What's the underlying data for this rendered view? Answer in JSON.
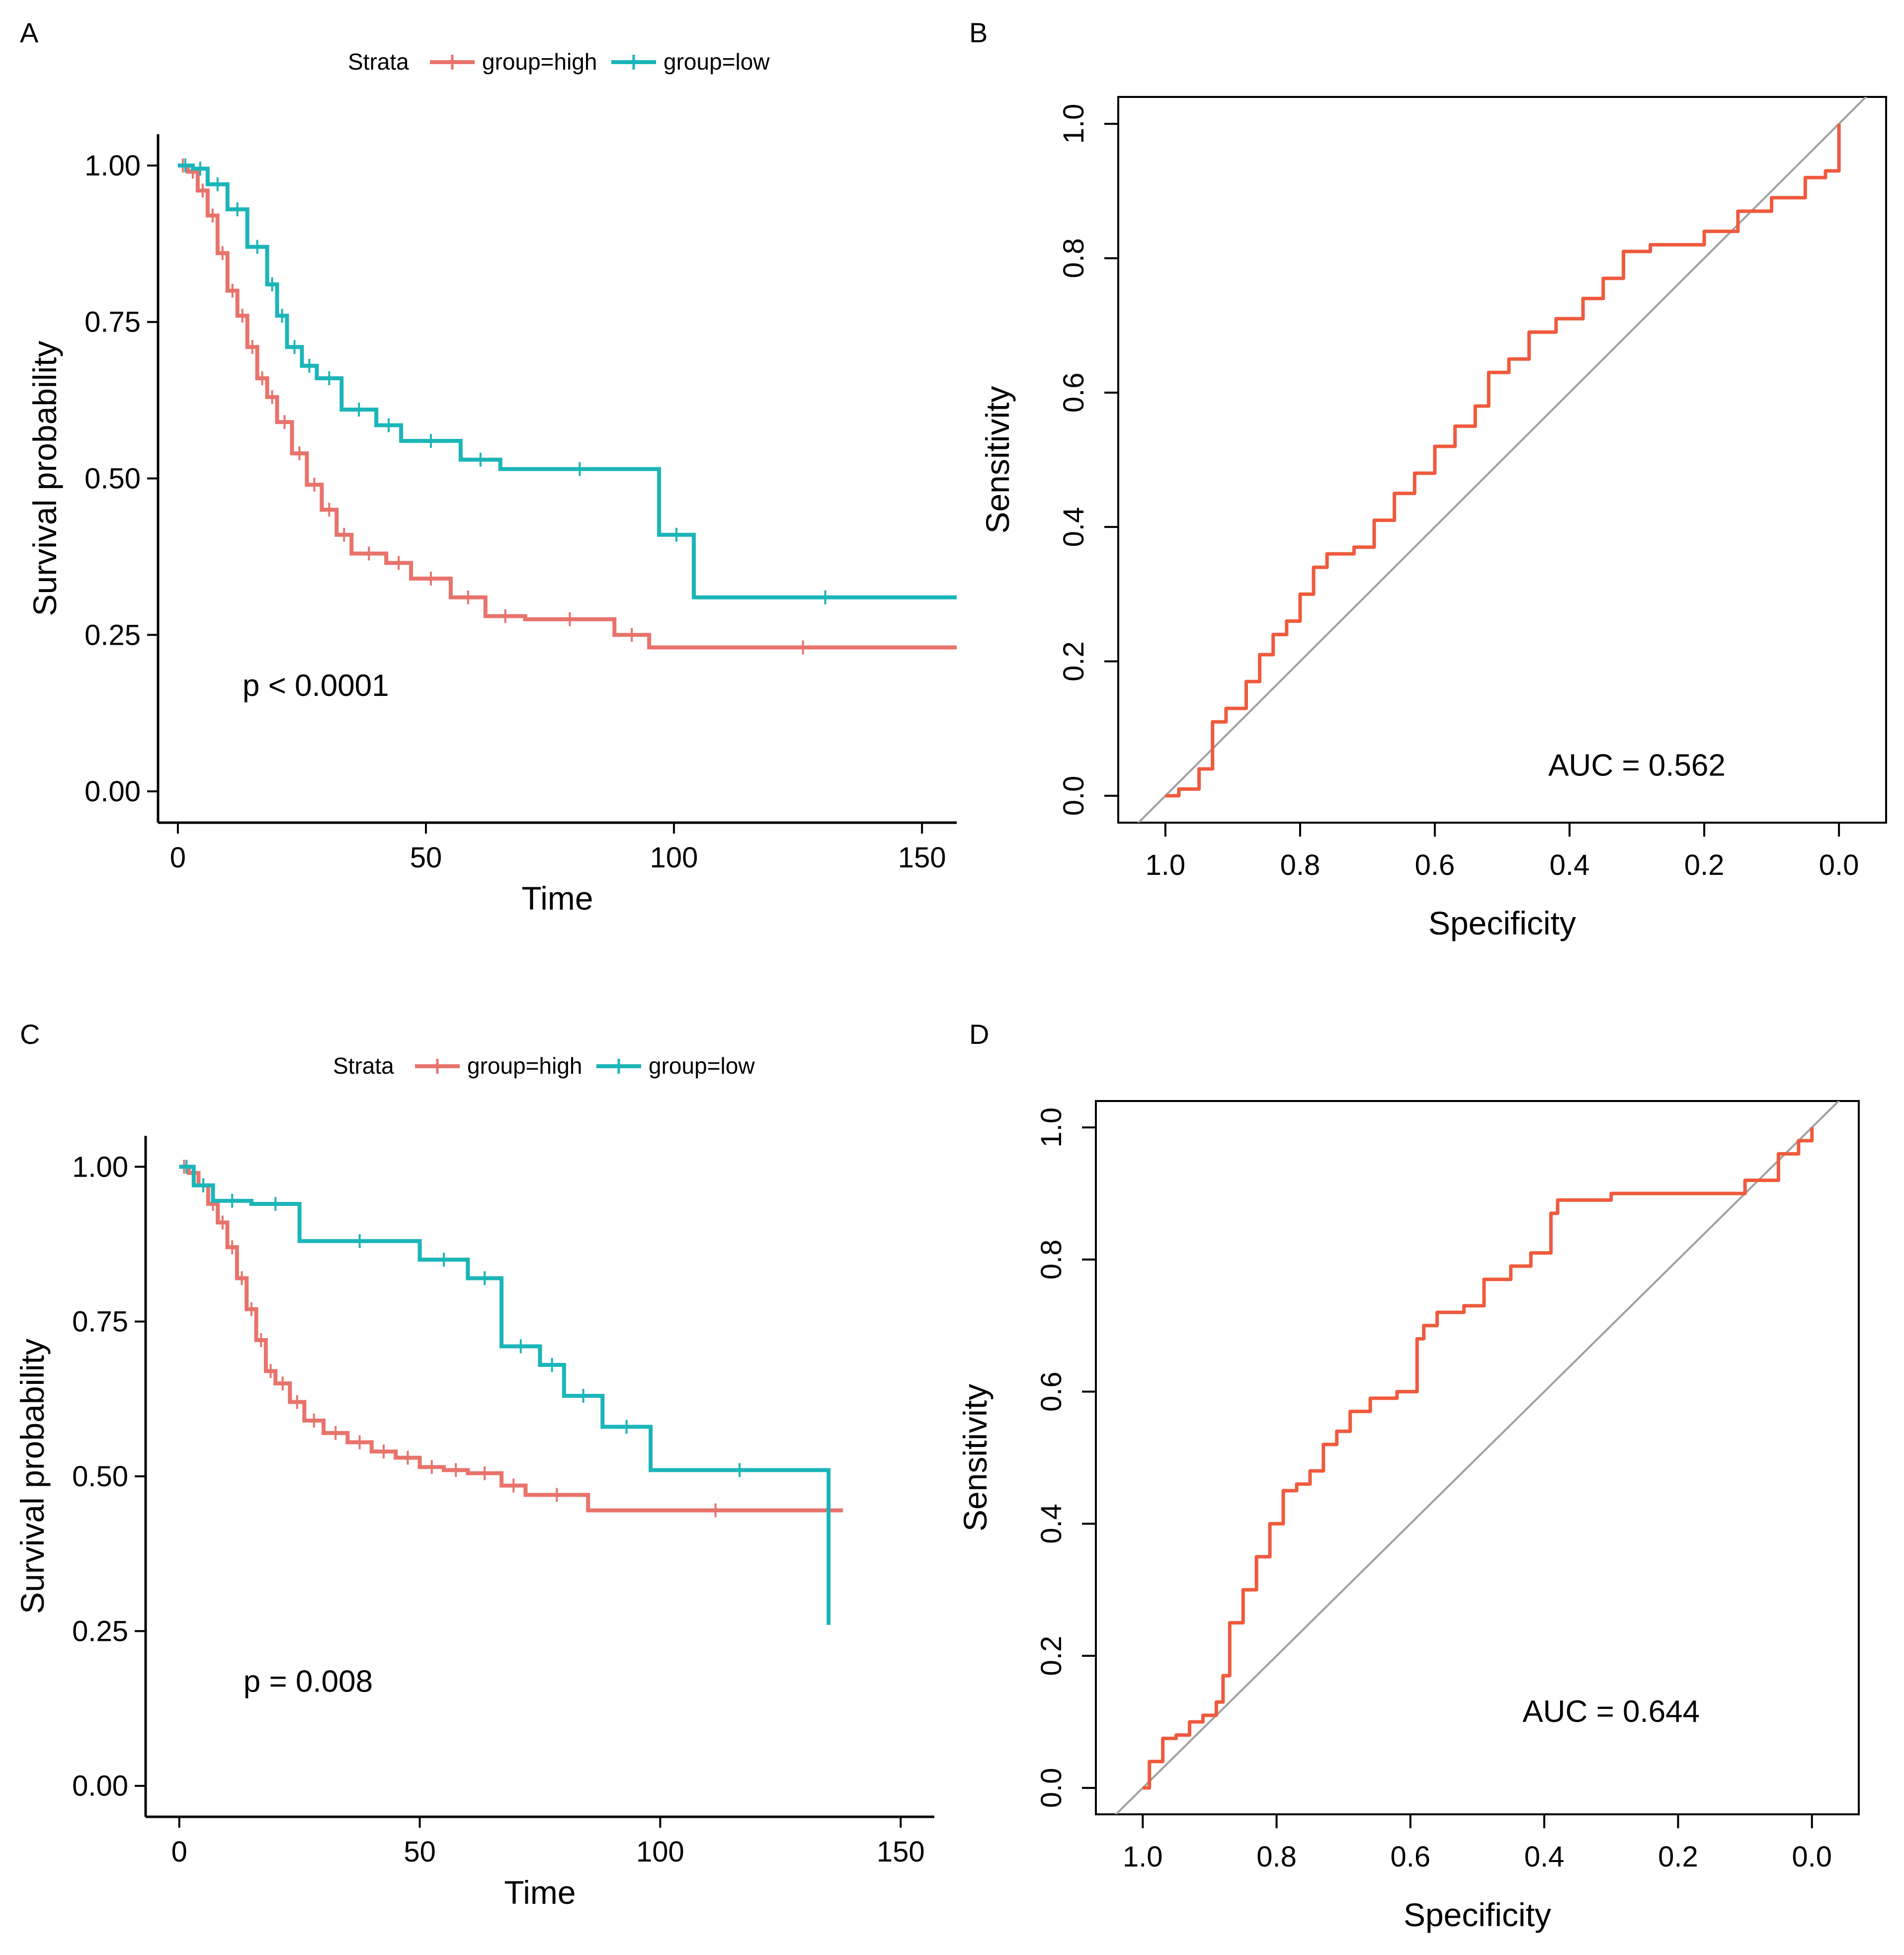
{
  "colors": {
    "high": "#e8736c",
    "low": "#1bb5b8",
    "roc": "#ef5a3c",
    "diag": "#a0a0a0",
    "axis": "#000000"
  },
  "chart_data": [
    {
      "panel": "A",
      "type": "line",
      "subtype": "kaplan-meier",
      "legend": {
        "title": "Strata",
        "entries": [
          "group=high",
          "group=low"
        ],
        "placement": "top"
      },
      "xlabel": "Time",
      "ylabel": "Survival probability",
      "xlim": [
        -4,
        157
      ],
      "ylim": [
        -0.05,
        1.05
      ],
      "xticks": [
        0,
        50,
        100,
        150
      ],
      "yticks": [
        "0.00",
        "0.25",
        "0.50",
        "0.75",
        "1.00"
      ],
      "annotation": {
        "text": "p < 0.0001",
        "x": 3,
        "y": 0.2
      },
      "series": [
        {
          "name": "group=high",
          "color": "#e8736c",
          "x": [
            0,
            2,
            4,
            6,
            8,
            10,
            12,
            14,
            16,
            18,
            20,
            23,
            26,
            29,
            32,
            35,
            42,
            47,
            55,
            62,
            70,
            88,
            95,
            157
          ],
          "y": [
            1.0,
            0.99,
            0.96,
            0.92,
            0.86,
            0.8,
            0.76,
            0.71,
            0.66,
            0.63,
            0.59,
            0.54,
            0.49,
            0.45,
            0.41,
            0.38,
            0.365,
            0.34,
            0.31,
            0.28,
            0.275,
            0.25,
            0.23,
            0.23
          ]
        },
        {
          "name": "group=low",
          "color": "#1bb5b8",
          "x": [
            0,
            3,
            6,
            10,
            14,
            18,
            20,
            22,
            25,
            28,
            33,
            40,
            45,
            57,
            65,
            97,
            104,
            157
          ],
          "y": [
            1.0,
            0.995,
            0.97,
            0.93,
            0.87,
            0.81,
            0.76,
            0.71,
            0.68,
            0.66,
            0.61,
            0.585,
            0.56,
            0.53,
            0.515,
            0.41,
            0.31,
            0.31
          ]
        }
      ]
    },
    {
      "panel": "B",
      "type": "line",
      "subtype": "roc",
      "xlabel": "Specificity",
      "ylabel": "Sensitivity",
      "xlim": [
        1.07,
        -0.07
      ],
      "ylim": [
        -0.04,
        1.04
      ],
      "xticks": [
        "1.0",
        "0.8",
        "0.6",
        "0.4",
        "0.2",
        "0.0"
      ],
      "yticks": [
        "0.0",
        "0.2",
        "0.4",
        "0.6",
        "0.8",
        "1.0"
      ],
      "annotation": {
        "text": "AUC = 0.562",
        "x": 0.3,
        "y": 0.03
      },
      "series": [
        {
          "name": "ROC",
          "color": "#ef5a3c",
          "x": [
            1.0,
            0.98,
            0.95,
            0.93,
            0.91,
            0.88,
            0.86,
            0.84,
            0.82,
            0.8,
            0.78,
            0.76,
            0.72,
            0.69,
            0.66,
            0.63,
            0.6,
            0.57,
            0.54,
            0.52,
            0.49,
            0.46,
            0.42,
            0.38,
            0.35,
            0.32,
            0.28,
            0.2,
            0.15,
            0.1,
            0.05,
            0.02,
            0.0,
            0.0
          ],
          "y": [
            0.0,
            0.01,
            0.04,
            0.11,
            0.13,
            0.17,
            0.21,
            0.24,
            0.26,
            0.3,
            0.34,
            0.36,
            0.37,
            0.41,
            0.45,
            0.48,
            0.52,
            0.55,
            0.58,
            0.63,
            0.65,
            0.69,
            0.71,
            0.74,
            0.77,
            0.81,
            0.82,
            0.84,
            0.87,
            0.89,
            0.92,
            0.93,
            0.96,
            1.0
          ]
        },
        {
          "name": "reference",
          "color": "#a0a0a0",
          "x": [
            1.07,
            -0.07
          ],
          "y": [
            -0.07,
            1.07
          ]
        }
      ]
    },
    {
      "panel": "C",
      "type": "line",
      "subtype": "kaplan-meier",
      "legend": {
        "title": "Strata",
        "entries": [
          "group=high",
          "group=low"
        ],
        "placement": "top"
      },
      "xlabel": "Time",
      "ylabel": "Survival probability",
      "xlim": [
        -7,
        157
      ],
      "ylim": [
        -0.05,
        1.05
      ],
      "xticks": [
        0,
        50,
        100,
        150
      ],
      "yticks": [
        "0.00",
        "0.25",
        "0.50",
        "0.75",
        "1.00"
      ],
      "annotation": {
        "text": "p = 0.008",
        "x": 3,
        "y": 0.2
      },
      "series": [
        {
          "name": "group=high",
          "color": "#e8736c",
          "x": [
            0,
            2,
            4,
            6,
            8,
            10,
            12,
            14,
            16,
            18,
            20,
            23,
            26,
            30,
            35,
            40,
            45,
            50,
            55,
            60,
            67,
            72,
            85,
            138
          ],
          "y": [
            1.0,
            0.99,
            0.97,
            0.94,
            0.91,
            0.87,
            0.82,
            0.77,
            0.72,
            0.67,
            0.65,
            0.62,
            0.59,
            0.57,
            0.555,
            0.54,
            0.53,
            0.515,
            0.51,
            0.505,
            0.485,
            0.47,
            0.445,
            0.445
          ]
        },
        {
          "name": "group=low",
          "color": "#1bb5b8",
          "x": [
            0,
            3,
            7,
            15,
            25,
            50,
            60,
            67,
            75,
            80,
            88,
            98,
            135,
            135
          ],
          "y": [
            1.0,
            0.97,
            0.945,
            0.94,
            0.88,
            0.85,
            0.82,
            0.71,
            0.68,
            0.63,
            0.58,
            0.51,
            0.51,
            0.26
          ]
        }
      ]
    },
    {
      "panel": "D",
      "type": "line",
      "subtype": "roc",
      "xlabel": "Specificity",
      "ylabel": "Sensitivity",
      "xlim": [
        1.07,
        -0.07
      ],
      "ylim": [
        -0.04,
        1.04
      ],
      "xticks": [
        "1.0",
        "0.8",
        "0.6",
        "0.4",
        "0.2",
        "0.0"
      ],
      "yticks": [
        "0.0",
        "0.2",
        "0.4",
        "0.6",
        "0.8",
        "1.0"
      ],
      "annotation": {
        "text": "AUC = 0.644",
        "x": 0.3,
        "y": 0.1
      },
      "series": [
        {
          "name": "ROC",
          "color": "#ef5a3c",
          "x": [
            1.0,
            0.99,
            0.97,
            0.95,
            0.93,
            0.91,
            0.89,
            0.88,
            0.87,
            0.85,
            0.83,
            0.81,
            0.79,
            0.77,
            0.75,
            0.73,
            0.71,
            0.69,
            0.66,
            0.62,
            0.59,
            0.58,
            0.56,
            0.52,
            0.49,
            0.45,
            0.42,
            0.39,
            0.38,
            0.3,
            0.1,
            0.05,
            0.02,
            0.0
          ],
          "y": [
            0.0,
            0.04,
            0.075,
            0.08,
            0.1,
            0.11,
            0.13,
            0.17,
            0.25,
            0.3,
            0.35,
            0.4,
            0.45,
            0.46,
            0.48,
            0.52,
            0.54,
            0.57,
            0.59,
            0.6,
            0.68,
            0.7,
            0.72,
            0.73,
            0.77,
            0.79,
            0.81,
            0.87,
            0.89,
            0.9,
            0.92,
            0.96,
            0.98,
            1.0
          ]
        },
        {
          "name": "reference",
          "color": "#a0a0a0",
          "x": [
            1.07,
            -0.07
          ],
          "y": [
            -0.07,
            1.07
          ]
        }
      ]
    }
  ]
}
